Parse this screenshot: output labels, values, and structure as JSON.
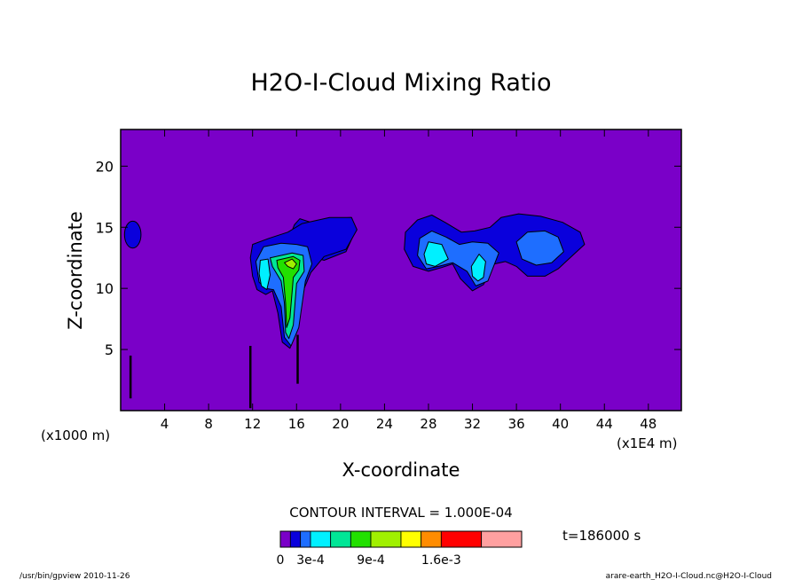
{
  "chart_data": {
    "type": "contour",
    "title": "H2O-I-Cloud Mixing Ratio",
    "xlabel": "X-coordinate",
    "ylabel": "Z-coordinate",
    "x_unit_left": "(x1000 m)",
    "x_unit_right": "(x1E4 m)",
    "x_ticks": [
      "4",
      "8",
      "12",
      "16",
      "20",
      "24",
      "28",
      "32",
      "36",
      "40",
      "44",
      "48"
    ],
    "y_ticks": [
      "5",
      "10",
      "15",
      "20"
    ],
    "xlim": [
      0,
      51
    ],
    "ylim": [
      0,
      23
    ],
    "contour_interval_text": "CONTOUR INTERVAL = 1.000E-04",
    "time_text": "t=186000 s",
    "colorbar": {
      "labels": [
        "0",
        "3e-4",
        "9e-4",
        "1.6e-3"
      ],
      "colors": [
        "#7a00c8",
        "#0a00dc",
        "#1e6eff",
        "#00f0ff",
        "#00e696",
        "#22e000",
        "#a0f000",
        "#ffff00",
        "#ff8c00",
        "#ff0000",
        "#ffa0a0"
      ],
      "level_upper_bounds": [
        0.0001,
        0.0002,
        0.0003,
        0.0005,
        0.0007,
        0.0009,
        0.0012,
        0.0014,
        0.0016,
        0.002,
        0.0024
      ]
    },
    "regions": [
      {
        "name": "left-anvil-core",
        "level": 1,
        "points": [
          [
            15.5,
            14.5
          ],
          [
            16.7,
            12.8
          ],
          [
            18.5,
            12.3
          ],
          [
            20.5,
            13.0
          ],
          [
            21.4,
            14.8
          ],
          [
            21.0,
            15.8
          ],
          [
            19.0,
            15.7
          ],
          [
            17.3,
            15.4
          ],
          [
            16.3,
            15.7
          ],
          [
            15.8,
            15.2
          ]
        ]
      },
      {
        "name": "left-anvil-outer",
        "level": 1,
        "points": [
          [
            11.8,
            12.5
          ],
          [
            12.0,
            13.6
          ],
          [
            13.5,
            14.1
          ],
          [
            15.2,
            14.6
          ],
          [
            16.5,
            15.3
          ],
          [
            17.5,
            15.5
          ],
          [
            19.0,
            15.8
          ],
          [
            21.0,
            15.8
          ],
          [
            21.5,
            14.8
          ],
          [
            20.5,
            13.2
          ],
          [
            18.5,
            12.6
          ],
          [
            17.3,
            11.3
          ],
          [
            16.7,
            10.0
          ],
          [
            16.0,
            6.4
          ],
          [
            15.4,
            5.1
          ],
          [
            14.7,
            5.6
          ],
          [
            14.3,
            8.0
          ],
          [
            13.8,
            9.8
          ],
          [
            13.2,
            9.5
          ],
          [
            12.4,
            9.9
          ],
          [
            12.0,
            11.0
          ]
        ]
      },
      {
        "name": "left-anvil-light",
        "level": 2,
        "points": [
          [
            12.3,
            12.2
          ],
          [
            13.0,
            13.4
          ],
          [
            14.6,
            13.7
          ],
          [
            16.0,
            13.6
          ],
          [
            17.0,
            13.4
          ],
          [
            17.4,
            12.0
          ],
          [
            16.8,
            10.6
          ],
          [
            16.2,
            6.8
          ],
          [
            15.5,
            5.3
          ],
          [
            14.9,
            6.0
          ],
          [
            14.6,
            8.5
          ],
          [
            13.9,
            9.9
          ],
          [
            13.2,
            10.0
          ],
          [
            12.6,
            10.5
          ]
        ]
      },
      {
        "name": "left-anvil-cyan",
        "level": 3,
        "points": [
          [
            12.6,
            11.2
          ],
          [
            12.7,
            12.3
          ],
          [
            13.4,
            12.4
          ],
          [
            13.6,
            11.1
          ],
          [
            13.3,
            9.9
          ],
          [
            12.8,
            10.2
          ]
        ]
      },
      {
        "name": "left-anvil-teal",
        "level": 4,
        "points": [
          [
            13.6,
            12.5
          ],
          [
            15.6,
            12.9
          ],
          [
            16.6,
            12.7
          ],
          [
            16.7,
            11.4
          ],
          [
            16.0,
            10.4
          ],
          [
            15.7,
            7.0
          ],
          [
            15.3,
            5.9
          ],
          [
            15.0,
            6.4
          ],
          [
            14.9,
            8.8
          ],
          [
            14.6,
            10.6
          ],
          [
            13.8,
            11.8
          ]
        ]
      },
      {
        "name": "left-anvil-green",
        "level": 5,
        "points": [
          [
            14.2,
            12.3
          ],
          [
            15.7,
            12.6
          ],
          [
            16.3,
            12.3
          ],
          [
            16.2,
            11.5
          ],
          [
            15.7,
            10.9
          ],
          [
            15.4,
            7.6
          ],
          [
            15.1,
            6.8
          ],
          [
            15.0,
            8.8
          ],
          [
            14.8,
            10.9
          ],
          [
            14.3,
            11.7
          ]
        ]
      },
      {
        "name": "left-anvil-yellowgreen",
        "level": 6,
        "points": [
          [
            14.9,
            12.1
          ],
          [
            15.6,
            12.4
          ],
          [
            16.0,
            12.0
          ],
          [
            15.7,
            11.6
          ],
          [
            15.2,
            11.8
          ]
        ]
      },
      {
        "name": "right-anvil-outer",
        "level": 1,
        "points": [
          [
            25.8,
            13.2
          ],
          [
            25.9,
            14.6
          ],
          [
            27.0,
            15.6
          ],
          [
            28.3,
            16.0
          ],
          [
            29.5,
            15.4
          ],
          [
            31.0,
            14.6
          ],
          [
            32.2,
            14.7
          ],
          [
            33.6,
            15.0
          ],
          [
            34.6,
            15.8
          ],
          [
            36.2,
            16.1
          ],
          [
            38.2,
            15.9
          ],
          [
            40.2,
            15.4
          ],
          [
            41.8,
            14.6
          ],
          [
            42.2,
            13.6
          ],
          [
            41.0,
            12.6
          ],
          [
            39.8,
            11.6
          ],
          [
            38.6,
            11.0
          ],
          [
            37.0,
            11.0
          ],
          [
            36.0,
            11.8
          ],
          [
            35.0,
            12.2
          ],
          [
            34.0,
            12.0
          ],
          [
            33.0,
            10.3
          ],
          [
            32.0,
            9.8
          ],
          [
            30.9,
            10.8
          ],
          [
            30.2,
            12.0
          ],
          [
            29.2,
            11.7
          ],
          [
            28.0,
            11.4
          ],
          [
            26.6,
            11.8
          ]
        ]
      },
      {
        "name": "right-anvil-light",
        "level": 2,
        "points": [
          [
            27.0,
            12.7
          ],
          [
            27.2,
            14.1
          ],
          [
            28.3,
            14.7
          ],
          [
            29.6,
            14.2
          ],
          [
            30.8,
            13.6
          ],
          [
            32.0,
            13.8
          ],
          [
            33.4,
            13.7
          ],
          [
            34.4,
            12.9
          ],
          [
            33.4,
            10.6
          ],
          [
            32.3,
            10.2
          ],
          [
            31.5,
            11.4
          ],
          [
            30.2,
            12.1
          ],
          [
            28.9,
            11.8
          ],
          [
            27.8,
            11.6
          ]
        ]
      },
      {
        "name": "right-anvil-light-2",
        "level": 2,
        "points": [
          [
            36.0,
            13.8
          ],
          [
            37.0,
            14.6
          ],
          [
            38.6,
            14.7
          ],
          [
            39.8,
            14.2
          ],
          [
            40.3,
            13.0
          ],
          [
            39.2,
            12.1
          ],
          [
            37.8,
            11.9
          ],
          [
            36.5,
            12.4
          ]
        ]
      },
      {
        "name": "right-anvil-cyan-1",
        "level": 3,
        "points": [
          [
            27.6,
            12.8
          ],
          [
            28.0,
            13.8
          ],
          [
            29.2,
            13.6
          ],
          [
            29.8,
            12.4
          ],
          [
            28.6,
            11.8
          ],
          [
            27.8,
            12.0
          ]
        ]
      },
      {
        "name": "right-anvil-cyan-2",
        "level": 3,
        "points": [
          [
            31.9,
            11.8
          ],
          [
            32.6,
            12.8
          ],
          [
            33.2,
            12.2
          ],
          [
            33.0,
            10.9
          ],
          [
            32.5,
            10.6
          ],
          [
            32.0,
            11.0
          ]
        ]
      }
    ],
    "stripes": [
      {
        "x": 0.9,
        "z_bottom": 1.0,
        "z_top": 4.5
      },
      {
        "x": 11.8,
        "z_bottom": 0.2,
        "z_top": 5.3
      },
      {
        "x": 16.1,
        "z_bottom": 2.2,
        "z_top": 6.2
      }
    ],
    "small_blob": {
      "x": 1.1,
      "z": 14.4,
      "rx": 0.75,
      "rz": 1.1,
      "level": 1
    }
  },
  "footer": {
    "left_text": "/usr/bin/gpview  2010-11-26",
    "right_text": "arare-earth_H2O-I-Cloud.nc@H2O-I-Cloud"
  }
}
